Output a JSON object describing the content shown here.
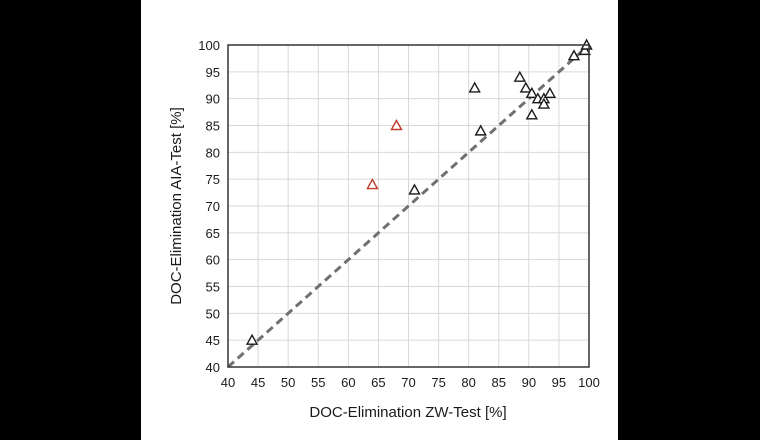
{
  "chart_data": {
    "type": "scatter",
    "xlabel": "DOC-Elimination ZW-Test [%]",
    "ylabel": "DOC-Elimination AIA-Test [%]",
    "xlim": [
      40,
      100
    ],
    "ylim": [
      40,
      100
    ],
    "xticks": [
      40,
      45,
      50,
      55,
      60,
      65,
      70,
      75,
      80,
      85,
      90,
      95,
      100
    ],
    "yticks": [
      40,
      45,
      50,
      55,
      60,
      65,
      70,
      75,
      80,
      85,
      90,
      95,
      100
    ],
    "grid": true,
    "marker": "triangle-open",
    "reference_line": {
      "style": "dashed",
      "from": [
        40,
        40
      ],
      "to": [
        100,
        100
      ],
      "color": "#707070"
    },
    "series": [
      {
        "color": "#1a1a1a",
        "points": [
          [
            44,
            45
          ],
          [
            71,
            73
          ],
          [
            81,
            92
          ],
          [
            82,
            84
          ],
          [
            88.5,
            94
          ],
          [
            89.5,
            92
          ],
          [
            90.5,
            91
          ],
          [
            91.5,
            90
          ],
          [
            92.5,
            90
          ],
          [
            92.5,
            89
          ],
          [
            93.5,
            91
          ],
          [
            90.5,
            87
          ],
          [
            97.5,
            98
          ],
          [
            99.3,
            99
          ],
          [
            99.6,
            100
          ]
        ]
      },
      {
        "color": "#c0392b",
        "points": [
          [
            64,
            74
          ],
          [
            68,
            85
          ]
        ]
      }
    ]
  }
}
